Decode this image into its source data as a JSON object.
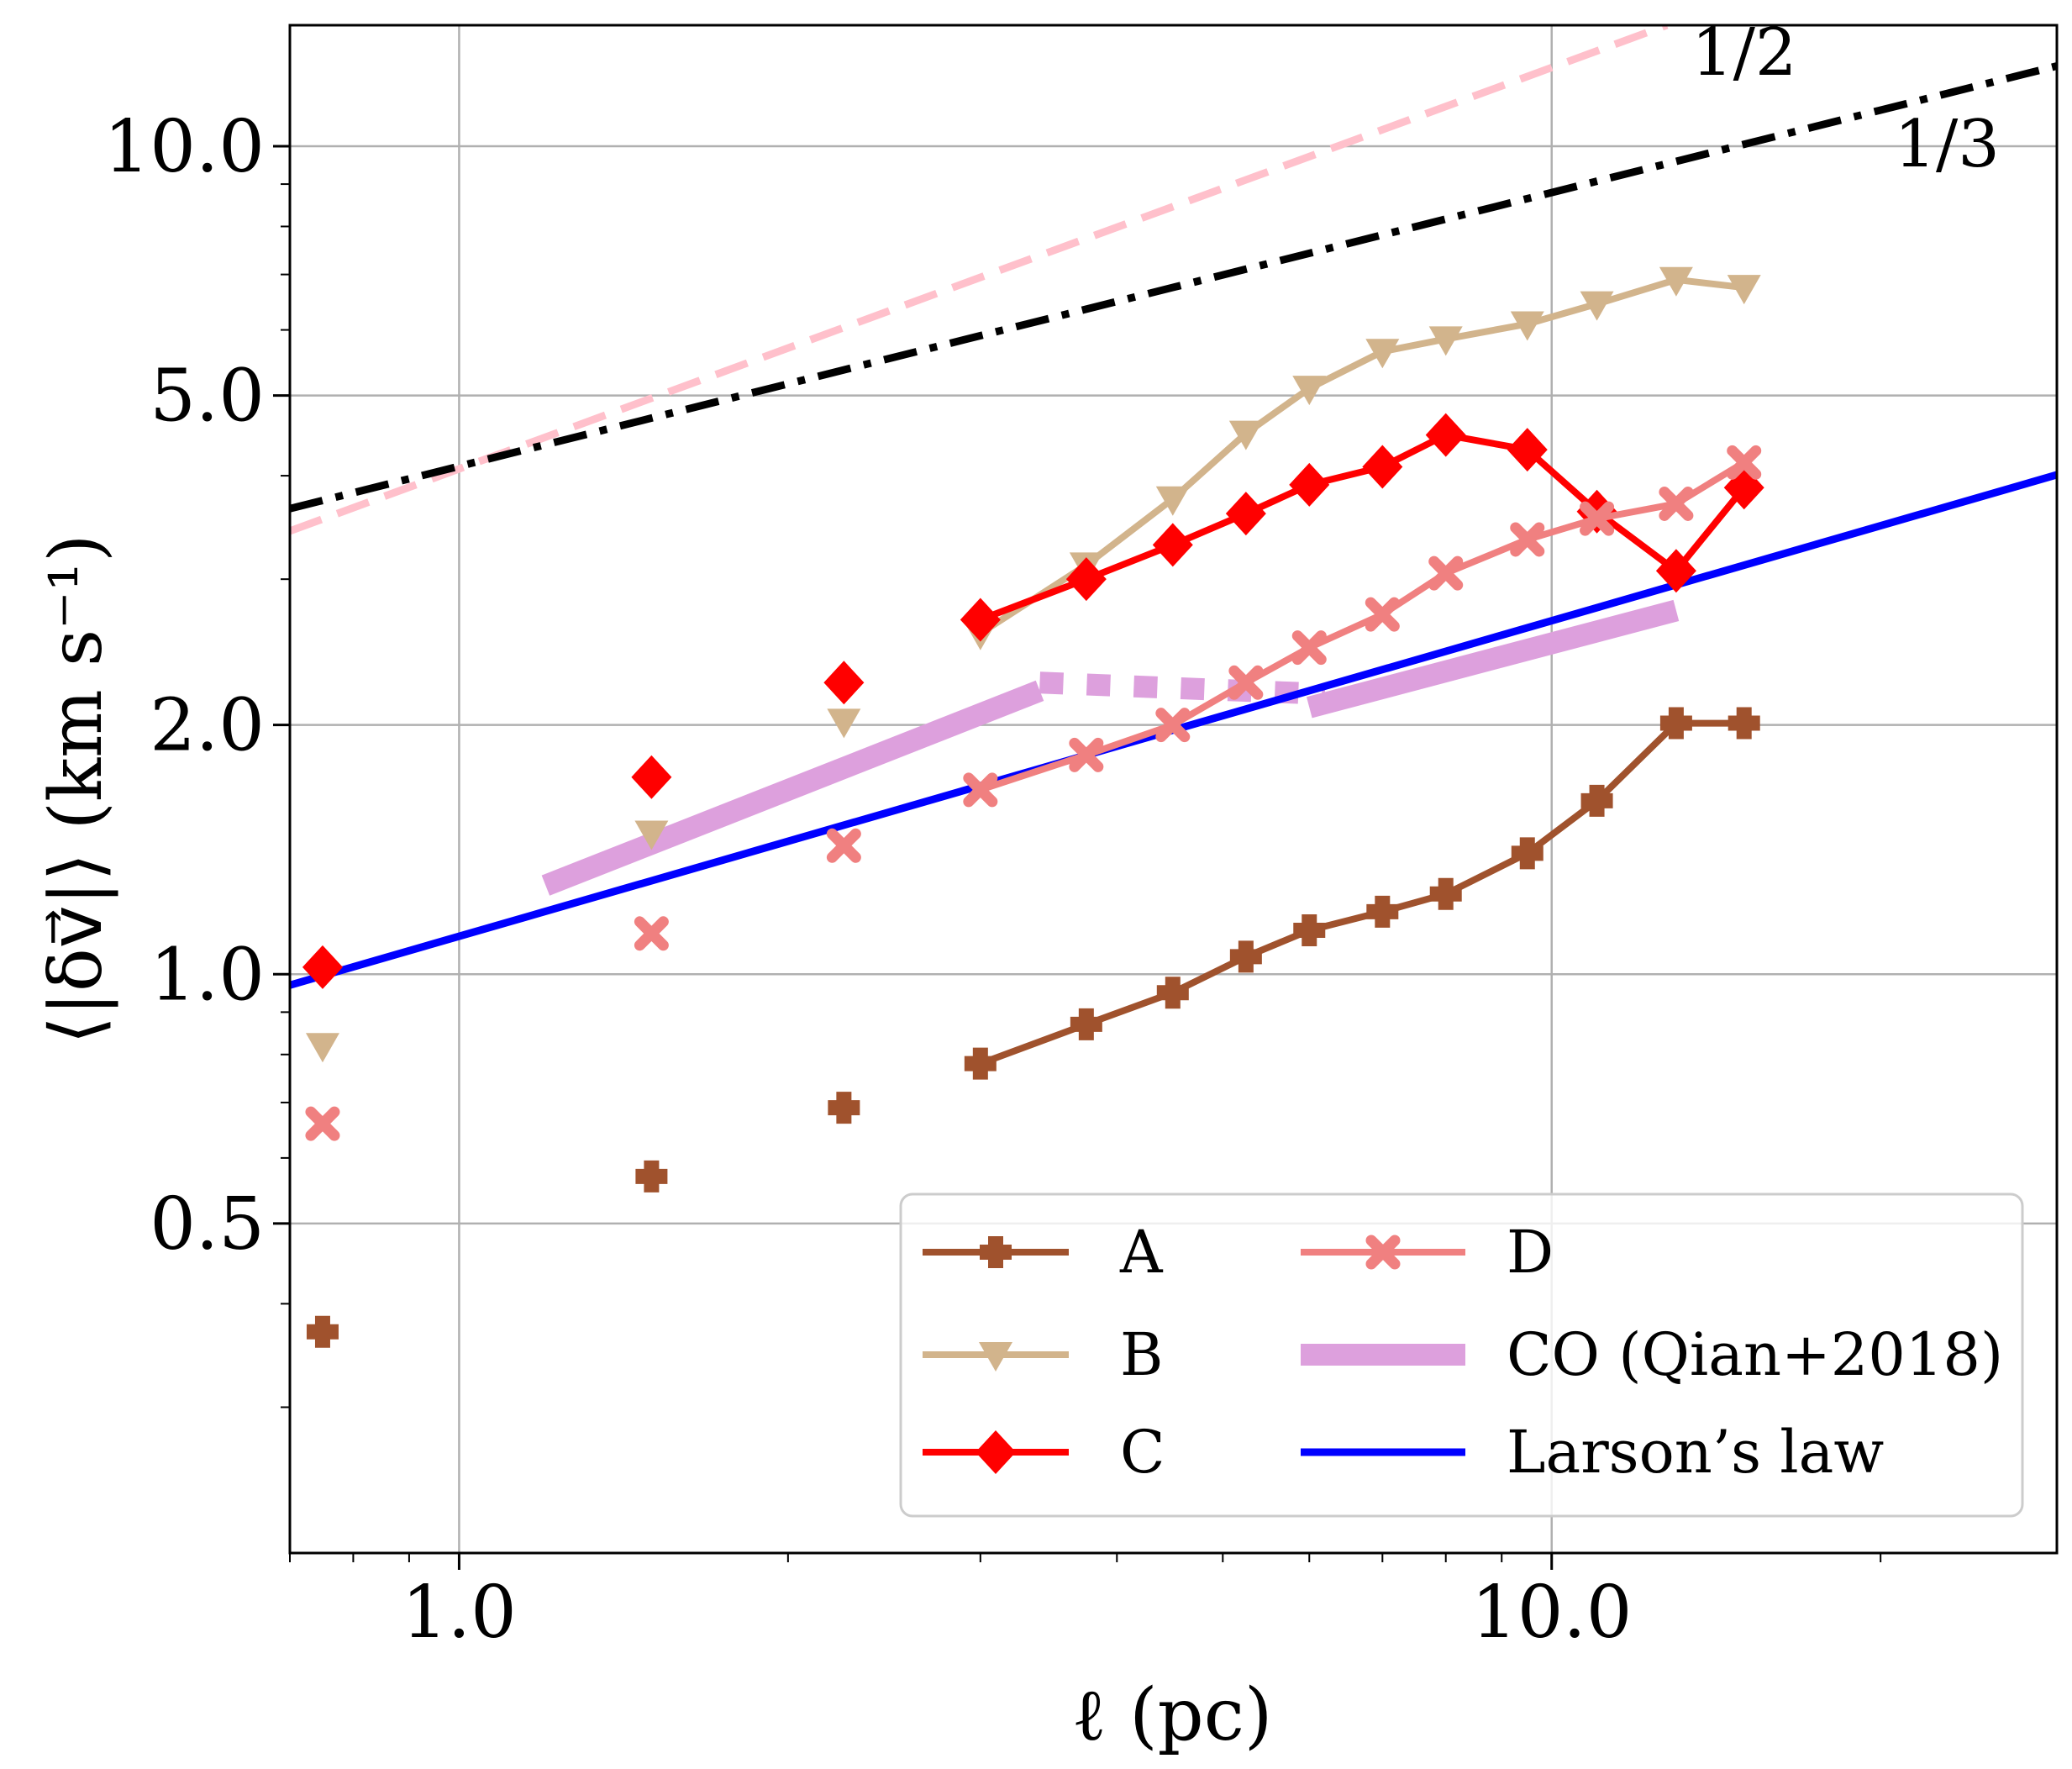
{
  "chart_data": {
    "type": "line",
    "xscale": "log",
    "yscale": "log",
    "xlabel": "ℓ (pc)",
    "ylabel": "⟨|δv⃗|⟩ (km s⁻¹)",
    "xlim": [
      0.7,
      29
    ],
    "ylim": [
      0.2,
      14
    ],
    "grid": true,
    "xticks": [
      {
        "value": 1,
        "label": "1.0"
      },
      {
        "value": 10,
        "label": "10.0"
      }
    ],
    "yticks": [
      {
        "value": 0.5,
        "label": "0.5"
      },
      {
        "value": 1,
        "label": "1.0"
      },
      {
        "value": 2,
        "label": "2.0"
      },
      {
        "value": 5,
        "label": "5.0"
      },
      {
        "value": 10,
        "label": "10.0"
      }
    ],
    "series": [
      {
        "name": "A",
        "color": "#a0522d",
        "marker": "plus",
        "line": {
          "x": [
            3.0,
            3.75,
            4.5,
            5.25,
            6.0,
            7.0,
            8.0,
            9.5,
            11.0,
            13.0,
            15.0
          ],
          "y": [
            0.78,
            0.87,
            0.95,
            1.05,
            1.13,
            1.19,
            1.25,
            1.4,
            1.62,
            2.01,
            2.01
          ]
        },
        "points": {
          "x": [
            0.75,
            1.5,
            2.25
          ],
          "y": [
            0.37,
            0.57,
            0.69
          ]
        }
      },
      {
        "name": "B",
        "color": "#d2b48c",
        "marker": "triangle-down",
        "line": {
          "x": [
            3.0,
            3.75,
            4.5,
            5.25,
            6.0,
            7.0,
            8.0,
            9.5,
            11.0,
            13.0,
            15.0
          ],
          "y": [
            2.58,
            3.12,
            3.75,
            4.5,
            5.1,
            5.65,
            5.85,
            6.1,
            6.45,
            6.9,
            6.75
          ]
        },
        "points": {
          "x": [
            0.75,
            1.5,
            2.25
          ],
          "y": [
            0.82,
            1.48,
            2.02
          ]
        }
      },
      {
        "name": "C",
        "color": "#ff0000",
        "marker": "diamond",
        "line": {
          "x": [
            3.0,
            3.75,
            4.5,
            5.25,
            6.0,
            7.0,
            8.0,
            9.5,
            11.0,
            13.0,
            15.0
          ],
          "y": [
            2.68,
            3.0,
            3.3,
            3.6,
            3.9,
            4.1,
            4.48,
            4.3,
            3.62,
            3.07,
            3.87
          ]
        },
        "points": {
          "x": [
            0.75,
            1.5,
            2.25
          ],
          "y": [
            1.02,
            1.73,
            2.25
          ]
        }
      },
      {
        "name": "D",
        "color": "#f08080",
        "marker": "x",
        "line": {
          "x": [
            3.0,
            3.75,
            4.5,
            5.25,
            6.0,
            7.0,
            8.0,
            9.5,
            11.0,
            13.0,
            15.0
          ],
          "y": [
            1.67,
            1.84,
            2.0,
            2.25,
            2.48,
            2.72,
            3.05,
            3.35,
            3.55,
            3.7,
            4.15
          ]
        },
        "points": {
          "x": [
            0.75,
            1.5,
            2.25
          ],
          "y": [
            0.66,
            1.12,
            1.43
          ]
        }
      }
    ],
    "co_qian2018": {
      "name": "CO (Qian+2018)",
      "color": "#dda0dd",
      "segments": [
        {
          "style": "solid",
          "x": [
            1.2,
            3.4
          ],
          "y": [
            1.28,
            2.2
          ]
        },
        {
          "style": "dotted",
          "x": [
            3.4,
            6.2
          ],
          "y": [
            2.25,
            2.18
          ]
        },
        {
          "style": "solid",
          "x": [
            6.0,
            13.0
          ],
          "y": [
            2.1,
            2.75
          ]
        }
      ]
    },
    "larson": {
      "name": "Larson's law",
      "color": "#0000ff",
      "x": [
        0.7,
        29
      ],
      "y": [
        0.97,
        4.01
      ]
    },
    "reference_lines": [
      {
        "label": "1/2",
        "color": "#ffc0cb",
        "style": "dashed",
        "x": [
          0.7,
          12.75
        ],
        "y": [
          3.43,
          14.0
        ]
      },
      {
        "label": "1/3",
        "color": "#000000",
        "style": "dashdot",
        "x": [
          0.7,
          29
        ],
        "y": [
          3.65,
          12.5
        ]
      }
    ],
    "annotations": [
      {
        "text": "1/2",
        "x": 15.0,
        "y": 12.2
      },
      {
        "text": "1/3",
        "x": 23.0,
        "y": 9.45
      }
    ],
    "legend": {
      "position": "lower-right",
      "entries": [
        "A",
        "B",
        "C",
        "D",
        "CO (Qian+2018)",
        "Larson’s law"
      ]
    }
  }
}
